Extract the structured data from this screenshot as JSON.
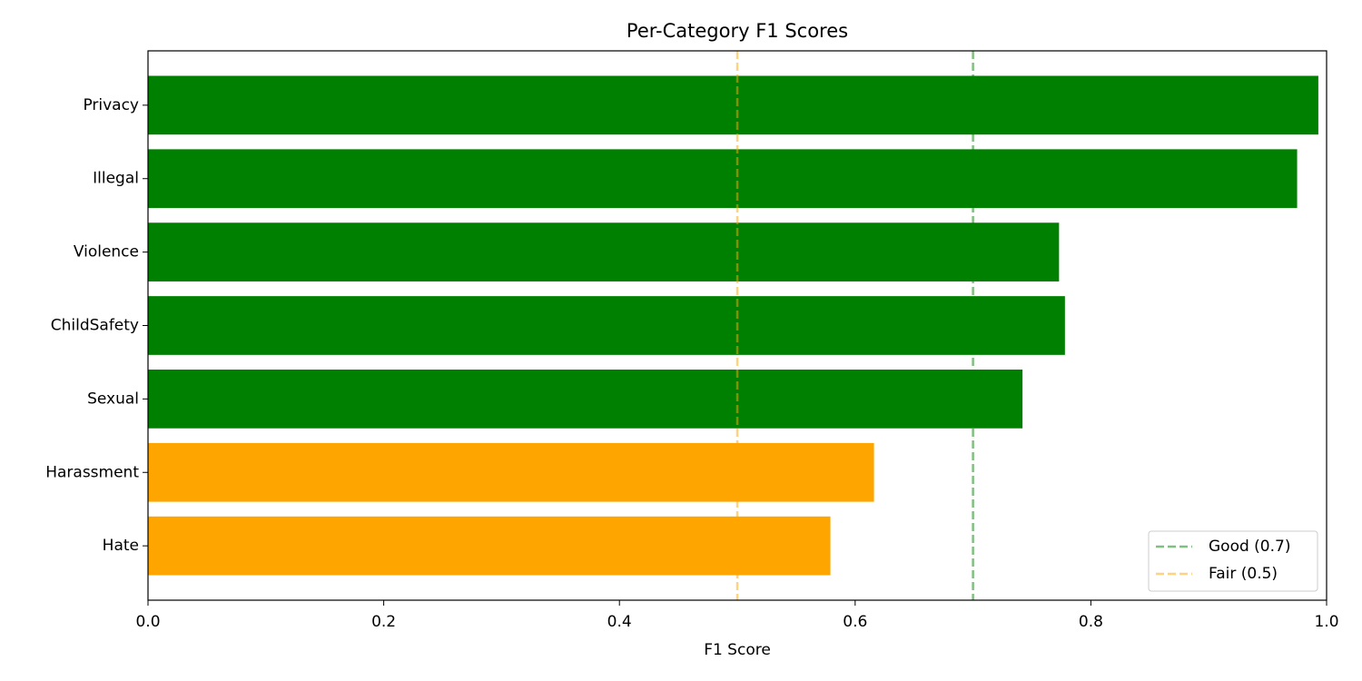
{
  "chart_data": {
    "type": "barh",
    "title": "Per-Category F1 Scores",
    "xlabel": "F1 Score",
    "categories": [
      "Hate",
      "Harassment",
      "Sexual",
      "ChildSafety",
      "Violence",
      "Illegal",
      "Privacy"
    ],
    "values": [
      0.579,
      0.616,
      0.742,
      0.778,
      0.773,
      0.975,
      0.993
    ],
    "colors": [
      "#ffa500",
      "#ffa500",
      "#008000",
      "#008000",
      "#008000",
      "#008000",
      "#008000"
    ],
    "xlim": [
      0,
      1
    ],
    "xticks": [
      {
        "value": 0,
        "label": "0.0"
      },
      0.2,
      0.4,
      0.6,
      0.8,
      {
        "value": 1,
        "label": "1.0"
      }
    ],
    "reference_lines": [
      {
        "name": "Good (0.7)",
        "value": 0.7,
        "color": "#008000"
      },
      {
        "name": "Fair (0.5)",
        "value": 0.5,
        "color": "#ffa500"
      }
    ],
    "legend": "lower right"
  }
}
